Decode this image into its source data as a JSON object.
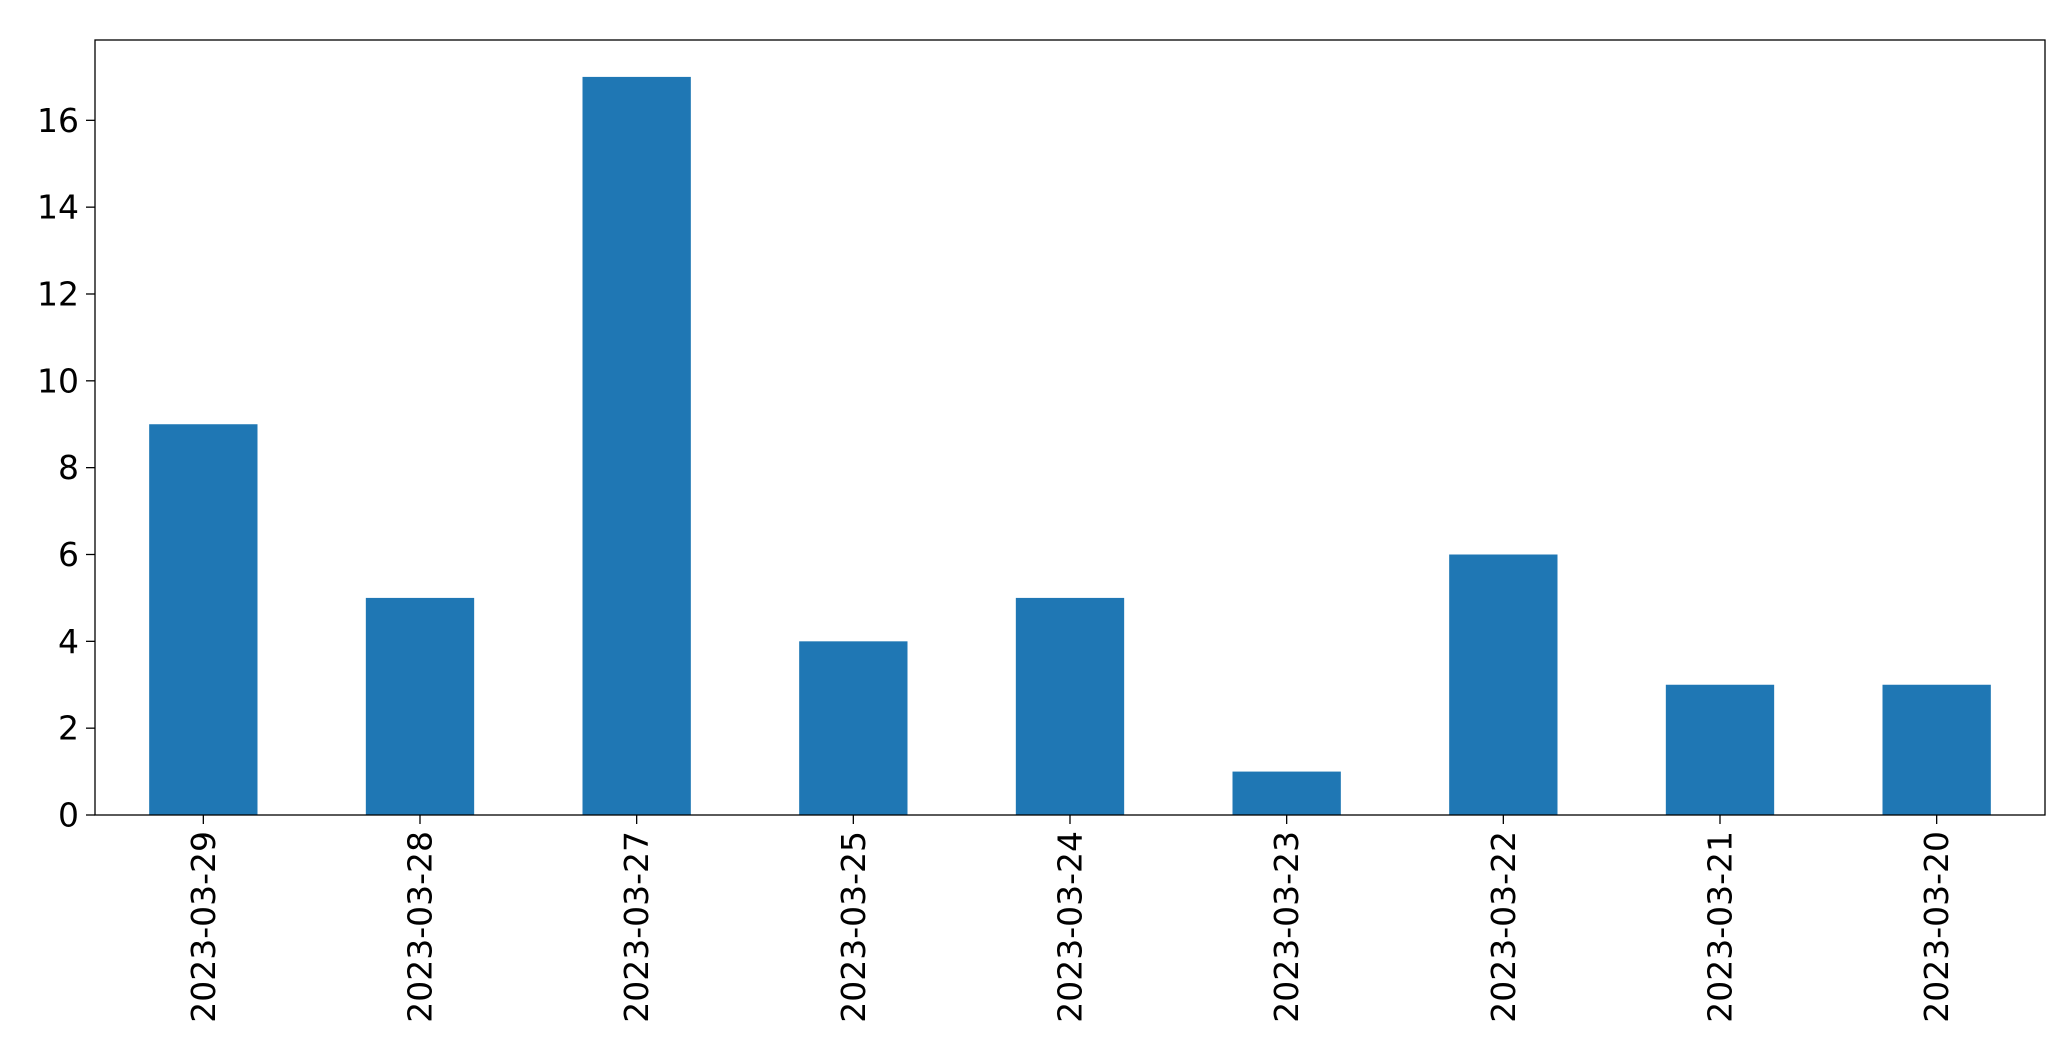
{
  "chart_data": {
    "type": "bar",
    "title": "",
    "xlabel": "",
    "ylabel": "",
    "categories": [
      "2023-03-29",
      "2023-03-28",
      "2023-03-27",
      "2023-03-25",
      "2023-03-24",
      "2023-03-23",
      "2023-03-22",
      "2023-03-21",
      "2023-03-20"
    ],
    "values": [
      9,
      5,
      17,
      4,
      5,
      1,
      6,
      3,
      3
    ],
    "ylim": [
      0,
      17.85
    ],
    "yticks": [
      0,
      2,
      4,
      6,
      8,
      10,
      12,
      14,
      16
    ],
    "ytick_labels": [
      "0",
      "2",
      "4",
      "6",
      "8",
      "10",
      "12",
      "14",
      "16"
    ],
    "bar_color": "#1f77b4",
    "grid": false,
    "legend": "none"
  }
}
